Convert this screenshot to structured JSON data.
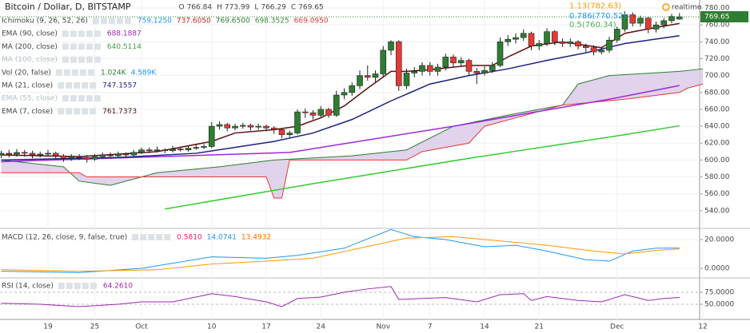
{
  "header": {
    "title": "Bitcoin / Dollar, D, BITSTAMP",
    "ohlc_labels": [
      "O",
      "H",
      "L",
      "C"
    ],
    "status": "realtime"
  },
  "chart_data": {
    "type": "candlestick",
    "up_color": "#2e7d32",
    "down_color": "#e53935",
    "candles": [
      [
        606,
        611,
        602,
        608
      ],
      [
        608,
        612,
        603,
        607
      ],
      [
        607,
        613,
        604,
        609
      ],
      [
        609,
        612,
        604,
        608
      ],
      [
        608,
        611,
        602,
        606
      ],
      [
        606,
        610,
        603,
        607
      ],
      [
        607,
        612,
        604,
        608
      ],
      [
        608,
        610,
        601,
        605
      ],
      [
        605,
        607,
        598,
        602
      ],
      [
        602,
        607,
        599,
        604
      ],
      [
        604,
        607,
        600,
        603
      ],
      [
        603,
        606,
        597,
        601
      ],
      [
        601,
        607,
        599,
        604
      ],
      [
        604,
        609,
        602,
        606
      ],
      [
        606,
        609,
        602,
        605
      ],
      [
        605,
        610,
        603,
        607
      ],
      [
        607,
        609,
        603,
        606
      ],
      [
        606,
        612,
        604,
        609
      ],
      [
        609,
        615,
        607,
        612
      ],
      [
        612,
        615,
        608,
        611
      ],
      [
        611,
        616,
        609,
        612
      ],
      [
        612,
        614,
        608,
        611
      ],
      [
        611,
        617,
        609,
        613
      ],
      [
        613,
        616,
        610,
        612
      ],
      [
        612,
        617,
        610,
        614
      ],
      [
        614,
        618,
        612,
        615
      ],
      [
        615,
        619,
        613,
        616
      ],
      [
        616,
        645,
        614,
        640
      ],
      [
        640,
        646,
        636,
        642
      ],
      [
        642,
        644,
        634,
        638
      ],
      [
        638,
        643,
        635,
        640
      ],
      [
        640,
        644,
        637,
        641
      ],
      [
        641,
        643,
        635,
        639
      ],
      [
        639,
        643,
        636,
        640
      ],
      [
        640,
        642,
        634,
        638
      ],
      [
        638,
        640,
        631,
        636
      ],
      [
        636,
        638,
        626,
        630
      ],
      [
        630,
        635,
        627,
        632
      ],
      [
        632,
        660,
        630,
        657
      ],
      [
        657,
        661,
        650,
        656
      ],
      [
        656,
        659,
        648,
        653
      ],
      [
        653,
        664,
        650,
        660
      ],
      [
        660,
        662,
        650,
        653
      ],
      [
        653,
        682,
        651,
        677
      ],
      [
        677,
        685,
        672,
        680
      ],
      [
        680,
        692,
        676,
        688
      ],
      [
        688,
        706,
        684,
        700
      ],
      [
        700,
        712,
        694,
        698
      ],
      [
        698,
        706,
        692,
        702
      ],
      [
        702,
        735,
        698,
        730
      ],
      [
        730,
        742,
        724,
        740
      ],
      [
        740,
        742,
        682,
        688
      ],
      [
        688,
        708,
        684,
        703
      ],
      [
        703,
        710,
        698,
        705
      ],
      [
        705,
        716,
        700,
        712
      ],
      [
        712,
        716,
        700,
        705
      ],
      [
        705,
        714,
        700,
        710
      ],
      [
        710,
        726,
        706,
        722
      ],
      [
        722,
        725,
        710,
        715
      ],
      [
        715,
        722,
        711,
        718
      ],
      [
        718,
        720,
        700,
        705
      ],
      [
        705,
        709,
        690,
        703
      ],
      [
        703,
        711,
        700,
        706
      ],
      [
        706,
        716,
        703,
        712
      ],
      [
        712,
        745,
        710,
        740
      ],
      [
        740,
        748,
        735,
        743
      ],
      [
        743,
        750,
        738,
        745
      ],
      [
        745,
        755,
        741,
        750
      ],
      [
        750,
        752,
        730,
        735
      ],
      [
        735,
        742,
        730,
        738
      ],
      [
        738,
        756,
        735,
        752
      ],
      [
        752,
        754,
        736,
        740
      ],
      [
        740,
        744,
        734,
        738
      ],
      [
        738,
        744,
        734,
        740
      ],
      [
        740,
        742,
        731,
        735
      ],
      [
        735,
        738,
        728,
        733
      ],
      [
        733,
        736,
        724,
        728
      ],
      [
        728,
        734,
        725,
        730
      ],
      [
        730,
        746,
        727,
        742
      ],
      [
        742,
        758,
        739,
        755
      ],
      [
        755,
        776,
        752,
        772
      ],
      [
        772,
        775,
        758,
        762
      ],
      [
        762,
        771,
        758,
        768
      ],
      [
        768,
        770,
        750,
        755
      ],
      [
        755,
        764,
        751,
        760
      ],
      [
        760,
        768,
        756,
        765
      ],
      [
        765,
        773,
        762,
        770
      ],
      [
        766.84,
        773.99,
        766.29,
        769.65
      ]
    ],
    "ylim": [
      520,
      789.5
    ],
    "yticks": [
      {
        "value": 540,
        "label": "540.00"
      },
      {
        "value": 560,
        "label": "560.00"
      },
      {
        "value": 580,
        "label": "580.00"
      },
      {
        "value": 600,
        "label": "600.00"
      },
      {
        "value": 620,
        "label": "620.00"
      },
      {
        "value": 640,
        "label": "640.00"
      },
      {
        "value": 660,
        "label": "660.00"
      },
      {
        "value": 680,
        "label": "680.00"
      },
      {
        "value": 700,
        "label": "700.00"
      },
      {
        "value": 720,
        "label": "720.00"
      },
      {
        "value": 740,
        "label": "740.00"
      },
      {
        "value": 760,
        "label": "760.00"
      },
      {
        "value": 780,
        "label": "780.00"
      }
    ],
    "xticks": [
      {
        "value": 6,
        "label": "19"
      },
      {
        "value": 12,
        "label": "25"
      },
      {
        "value": 18,
        "label": "Oct"
      },
      {
        "value": 27,
        "label": "10"
      },
      {
        "value": 34,
        "label": "17"
      },
      {
        "value": 41,
        "label": "24"
      },
      {
        "value": 49,
        "label": "Nov"
      },
      {
        "value": 55,
        "label": "7"
      },
      {
        "value": 62,
        "label": "14"
      },
      {
        "value": 69,
        "label": "21"
      },
      {
        "value": 79,
        "label": "Dec"
      },
      {
        "value": 90,
        "label": "12"
      }
    ],
    "indicators": [
      {
        "label": "Ichimoku (9, 26, 52, 26)",
        "readouts": [
          {
            "text": "759.1250",
            "color": "#2196f3"
          },
          {
            "text": "737.6050",
            "color": "#c62828"
          },
          {
            "text": "769.6500",
            "color": "#2e7d32"
          },
          {
            "text": "698.3525",
            "color": "#388e3c"
          },
          {
            "text": "669.0950",
            "color": "#e53935"
          }
        ],
        "cloud_color": "#d8c8e6",
        "spans": [
          {
            "color": "#2e7d32",
            "x": [
              0,
              8,
              10,
              14,
              20,
              28,
              35,
              45,
              52,
              58,
              66,
              72,
              74,
              78,
              87,
              90
            ],
            "values": [
              600,
              592,
              575,
              570,
              585,
              592,
              600,
              605,
              612,
              640,
              655,
              665,
              690,
              700,
              705,
              708
            ]
          },
          {
            "color": "#e53935",
            "x": [
              0,
              10,
              11,
              34,
              35,
              36,
              37,
              52,
              54,
              60,
              62,
              70,
              72,
              80,
              87,
              88,
              90
            ],
            "values": [
              585,
              585,
              580,
              580,
              555,
              555,
              600,
              600,
              610,
              620,
              640,
              660,
              665,
              672,
              680,
              685,
              690
            ]
          }
        ]
      },
      {
        "label": "EMA (90, close)",
        "readouts": [
          {
            "text": "688.1887",
            "color": "#9c27b0"
          }
        ],
        "color": "#9c27e0",
        "x": [
          0,
          37,
          58,
          78,
          87
        ],
        "values": [
          598,
          609,
          640,
          672,
          688.1887
        ]
      },
      {
        "label": "MA (200, close)",
        "readouts": [
          {
            "text": "640.5114",
            "color": "#43a047"
          }
        ],
        "color": "#33cc33",
        "x": [
          21,
          40,
          60,
          80,
          87
        ],
        "values": [
          542,
          572,
          602,
          630,
          640.5114
        ]
      },
      {
        "label": "MA (100, close)",
        "faded": true,
        "readouts": []
      },
      {
        "label": "Vol (20, false)",
        "readouts": [
          {
            "text": "1.024K",
            "color": "#2e7d32"
          },
          {
            "text": "4.589K",
            "color": "#2196f3"
          }
        ]
      },
      {
        "label": "MA (21, close)",
        "readouts": [
          {
            "text": "747.1557",
            "color": "#1a237e"
          }
        ],
        "color": "#1a237e",
        "x": [
          0,
          15,
          25,
          35,
          40,
          45,
          50,
          55,
          60,
          65,
          70,
          75,
          80,
          87
        ],
        "values": [
          600,
          603,
          608,
          622,
          632,
          648,
          670,
          690,
          700,
          708,
          718,
          727,
          738,
          747.1557
        ]
      },
      {
        "label": "EMA (55, close)",
        "faded": true,
        "readouts": []
      },
      {
        "label": "EMA (7, close)",
        "readouts": [
          {
            "text": "761.7373",
            "color": "#4e0d0d"
          }
        ],
        "color": "#5d1010",
        "x": [
          0,
          10,
          20,
          27,
          30,
          35,
          38,
          41,
          44,
          47,
          50,
          52,
          55,
          60,
          63,
          65,
          68,
          72,
          77,
          80,
          84,
          87
        ],
        "values": [
          606,
          604,
          610,
          622,
          632,
          636,
          640,
          650,
          664,
          685,
          705,
          705,
          707,
          712,
          712,
          722,
          735,
          740,
          733,
          750,
          757,
          761.7373
        ]
      }
    ],
    "fib_levels": [
      {
        "label": "1.13(782.63)",
        "value": 782.63,
        "color": "#ff9800"
      },
      {
        "label": "0.786(770.52)",
        "value": 770.52,
        "color": "#2196f3"
      },
      {
        "label": "0.5(760.34)",
        "value": 760.34,
        "color": "#4caf50"
      }
    ]
  },
  "macd": {
    "label": "MACD (12, 26, close, 9, false, true)",
    "readouts": [
      {
        "text": "0.5810",
        "color": "#e91e63"
      },
      {
        "text": "14.0741",
        "color": "#2196f3"
      },
      {
        "text": "13.4932",
        "color": "#ff6d00"
      }
    ],
    "ylim": [
      -6.1,
      27.2
    ],
    "yticks": [
      {
        "value": 0,
        "label": "0.0000"
      },
      {
        "value": 20,
        "label": "20.0000"
      }
    ],
    "series": [
      {
        "color": "#2196f3",
        "x": [
          0,
          10,
          18,
          27,
          34,
          38,
          44,
          50,
          53,
          57,
          62,
          66,
          70,
          75,
          78,
          81,
          84,
          87
        ],
        "values": [
          -2,
          -3,
          0,
          8,
          7,
          9,
          14,
          27,
          22,
          20,
          15,
          16,
          12,
          6,
          5,
          12,
          14,
          14.0741
        ]
      },
      {
        "color": "#ff9800",
        "x": [
          0,
          10,
          20,
          27,
          34,
          40,
          46,
          52,
          58,
          64,
          70,
          76,
          80,
          84,
          87
        ],
        "values": [
          -1,
          -2,
          -1,
          3,
          5,
          7,
          14,
          21,
          22,
          19,
          16,
          12,
          10,
          12.5,
          13.4932
        ]
      }
    ]
  },
  "rsi": {
    "label": "RSI (14, close)",
    "readouts": [
      {
        "text": "64.2610",
        "color": "#9c27b0"
      }
    ],
    "ylim": [
      18.3,
      101.7
    ],
    "yticks": [
      {
        "value": 50,
        "label": "50.0000"
      },
      {
        "value": 75,
        "label": "75.0000"
      }
    ],
    "series": [
      {
        "color": "#9c27b0",
        "x": [
          0,
          5,
          10,
          15,
          18,
          22,
          27,
          30,
          34,
          36,
          38,
          41,
          44,
          47,
          50,
          51,
          54,
          57,
          61,
          64,
          67,
          68,
          70,
          74,
          77,
          80,
          83,
          85,
          87
        ],
        "values": [
          52,
          50,
          45,
          50,
          55,
          55,
          72,
          66,
          55,
          45,
          62,
          65,
          75,
          82,
          87,
          60,
          62,
          64,
          55,
          70,
          72,
          58,
          66,
          58,
          55,
          70,
          58,
          62,
          64.261
        ]
      }
    ]
  }
}
